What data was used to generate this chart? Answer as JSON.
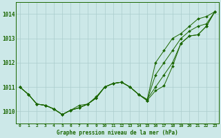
{
  "background_color": "#cce8e8",
  "grid_color": "#aacccc",
  "line_color": "#1a6600",
  "marker_color": "#1a6600",
  "title": "Graphe pression niveau de la mer (hPa)",
  "xlim": [
    -0.5,
    23.5
  ],
  "ylim": [
    1009.5,
    1014.5
  ],
  "yticks": [
    1010,
    1011,
    1012,
    1013,
    1014
  ],
  "xticks": [
    0,
    1,
    2,
    3,
    4,
    5,
    6,
    7,
    8,
    9,
    10,
    11,
    12,
    13,
    14,
    15,
    16,
    17,
    18,
    19,
    20,
    21,
    22,
    23
  ],
  "series": [
    [
      1011.0,
      1010.7,
      1010.3,
      1010.25,
      1010.1,
      1009.87,
      1010.05,
      1010.15,
      1010.3,
      1010.55,
      1011.0,
      1011.15,
      1011.2,
      1011.0,
      1010.7,
      1010.45,
      1010.85,
      1011.05,
      1011.85,
      1012.8,
      1013.1,
      1013.15,
      1013.5,
      1014.1
    ],
    [
      1011.0,
      1010.7,
      1010.3,
      1010.25,
      1010.1,
      1009.87,
      1010.05,
      1010.25,
      1010.3,
      1010.6,
      1011.0,
      1011.15,
      1011.2,
      1011.0,
      1010.7,
      1010.5,
      1011.0,
      1011.5,
      1012.0,
      1012.8,
      1013.1,
      1013.15,
      1013.5,
      1014.1
    ],
    [
      1011.0,
      1010.7,
      1010.3,
      1010.25,
      1010.1,
      1009.87,
      1010.05,
      1010.15,
      1010.3,
      1010.55,
      1011.0,
      1011.15,
      1011.2,
      1011.0,
      1010.7,
      1010.45,
      1011.5,
      1012.0,
      1012.5,
      1013.0,
      1013.3,
      1013.5,
      1013.6,
      1014.1
    ],
    [
      1011.0,
      1010.7,
      1010.3,
      1010.25,
      1010.1,
      1009.87,
      1010.05,
      1010.15,
      1010.3,
      1010.55,
      1011.0,
      1011.15,
      1011.2,
      1011.0,
      1010.7,
      1010.45,
      1012.0,
      1012.5,
      1013.0,
      1013.2,
      1013.5,
      1013.8,
      1013.9,
      1014.1
    ]
  ]
}
